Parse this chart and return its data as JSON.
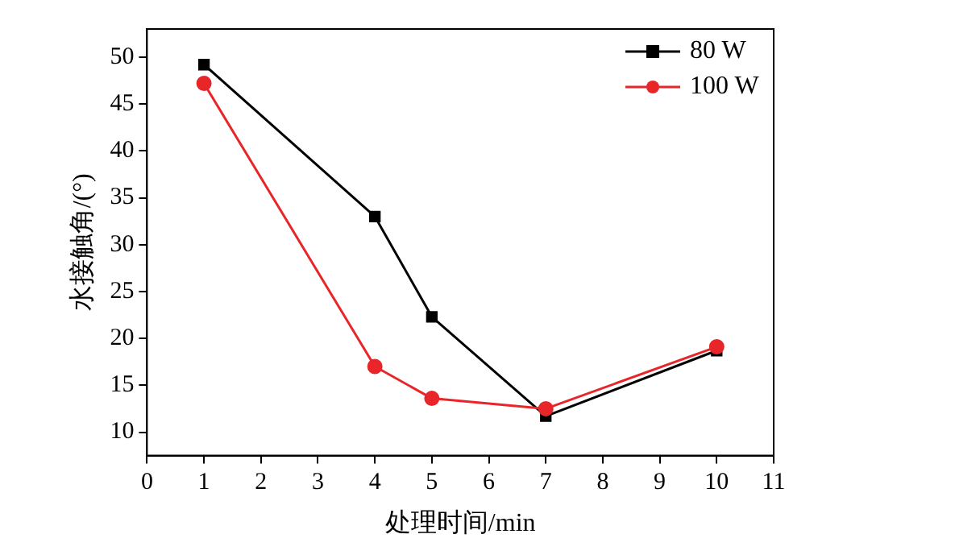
{
  "chart_data": {
    "type": "line",
    "xlabel": "处理时间/min",
    "ylabel": "水接触角/(°)",
    "x": [
      1,
      4,
      5,
      7,
      10
    ],
    "series": [
      {
        "name": "80 W",
        "color": "#000000",
        "marker": "square",
        "values": [
          49.2,
          33,
          22.3,
          11.7,
          18.7
        ]
      },
      {
        "name": "100 W",
        "color": "#e8262a",
        "marker": "circle",
        "values": [
          47.2,
          17,
          13.6,
          12.5,
          19.1
        ]
      }
    ],
    "xlim": [
      0,
      11
    ],
    "xticks": [
      0,
      1,
      2,
      3,
      4,
      5,
      6,
      7,
      8,
      9,
      10,
      11
    ],
    "ylim": [
      7.5,
      53
    ],
    "yticks": [
      10,
      15,
      20,
      25,
      30,
      35,
      40,
      45,
      50
    ],
    "grid": false,
    "legend": "top right",
    "line_style": "solid"
  }
}
